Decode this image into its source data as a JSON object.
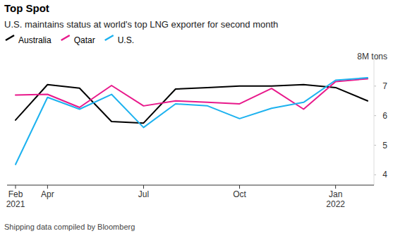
{
  "chart_data": {
    "type": "line",
    "title": "Top Spot",
    "subtitle": "U.S. maintains status at world's top LNG exporter for second month",
    "source": "Shipping data compiled by Bloomberg",
    "categories": [
      "Feb 2021",
      "Apr",
      null,
      null,
      "Jul",
      null,
      null,
      "Oct",
      null,
      null,
      "Jan 2022",
      null
    ],
    "series": [
      {
        "name": "Australia",
        "color": "#000000",
        "values": [
          5.85,
          7.05,
          6.93,
          5.8,
          5.75,
          6.9,
          6.95,
          7.0,
          7.0,
          7.05,
          6.95,
          6.5
        ]
      },
      {
        "name": "Qatar",
        "color": "#e8198b",
        "values": [
          6.7,
          6.72,
          6.28,
          7.02,
          6.33,
          6.5,
          6.45,
          6.4,
          6.92,
          6.22,
          7.15,
          7.25
        ]
      },
      {
        "name": "U.S.",
        "color": "#1db2ef",
        "values": [
          4.35,
          6.62,
          6.22,
          6.72,
          5.6,
          6.4,
          6.33,
          5.9,
          6.25,
          6.45,
          7.2,
          7.28
        ]
      }
    ],
    "ylim": [
      3.65,
      8
    ],
    "yticks": [
      4,
      5,
      6,
      7,
      {
        "value": 8,
        "label": "8M tons"
      }
    ],
    "grid": false,
    "legend": "top-left"
  }
}
